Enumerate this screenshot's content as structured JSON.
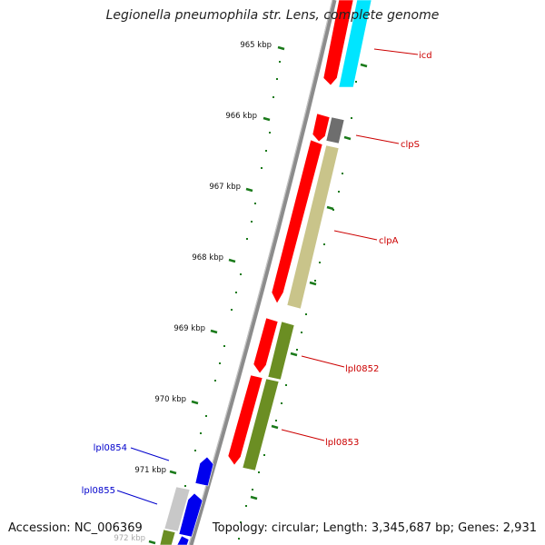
{
  "title": "Legionella pneumophila str. Lens, complete genome",
  "footer": {
    "accession": "Accession: NC_006369",
    "topology": "Topology: circular; Length: 3,345,687 bp; Genes: 2,931"
  },
  "colors": {
    "backbone": "#8c8c8c",
    "ticks": "#1a7a1a",
    "cds_red": "#ff0000",
    "cds_cyan": "#00e5ff",
    "cds_grey": "#6e6e6e",
    "cds_tan": "#c9c48a",
    "cds_olive": "#6b8e23",
    "cds_blue": "#0000ee",
    "cds_lightgrey": "#c8c8c8",
    "label_red": "#cc0000",
    "label_blue": "#0000cc"
  },
  "scale_labels": [
    "965 kbp",
    "966 kbp",
    "967 kbp",
    "968 kbp",
    "969 kbp",
    "970 kbp",
    "971 kbp",
    "972 kbp"
  ],
  "genes": [
    {
      "name": "icd",
      "color": "label_red"
    },
    {
      "name": "clpS",
      "color": "label_red"
    },
    {
      "name": "clpA",
      "color": "label_red"
    },
    {
      "name": "lpl0852",
      "color": "label_red"
    },
    {
      "name": "lpl0853",
      "color": "label_red"
    },
    {
      "name": "lpl0854",
      "color": "label_blue"
    },
    {
      "name": "lpl0855",
      "color": "label_blue"
    }
  ]
}
